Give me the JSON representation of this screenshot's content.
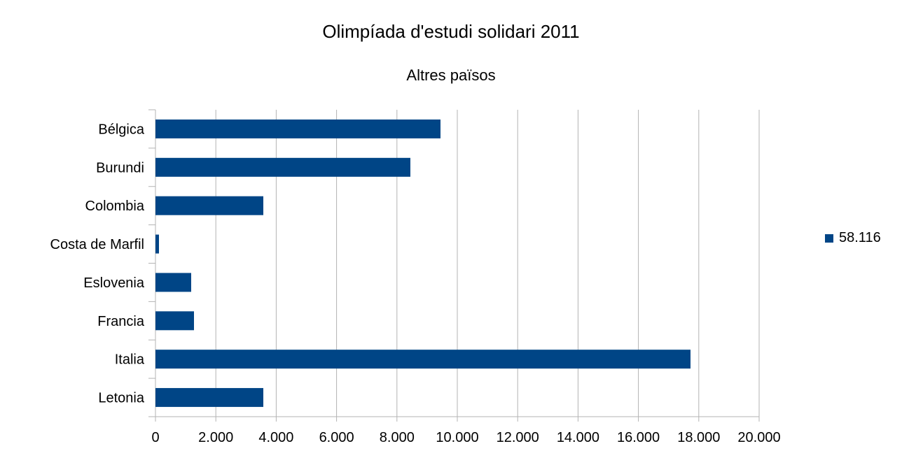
{
  "chart_data": {
    "type": "bar",
    "orientation": "horizontal",
    "title": "Olimpíada d'estudi solidari 2011",
    "subtitle": "Altres països",
    "categories": [
      "Bélgica",
      "Burundi",
      "Colombia",
      "Costa de Marfil",
      "Eslovenia",
      "Francia",
      "Italia",
      "Letonia"
    ],
    "series": [
      {
        "name": "58.116",
        "values": [
          9443,
          8445,
          3573,
          116,
          1183,
          1276,
          17726,
          3573
        ],
        "color": "#004586"
      }
    ],
    "xlim": [
      0,
      20000
    ],
    "xticks": [
      0,
      2000,
      4000,
      6000,
      8000,
      10000,
      12000,
      14000,
      16000,
      18000,
      20000
    ],
    "xtick_labels": [
      "0",
      "2.000",
      "4.000",
      "6.000",
      "8.000",
      "10.000",
      "12.000",
      "14.000",
      "16.000",
      "18.000",
      "20.000"
    ],
    "grid": true,
    "legend_position": "right"
  }
}
